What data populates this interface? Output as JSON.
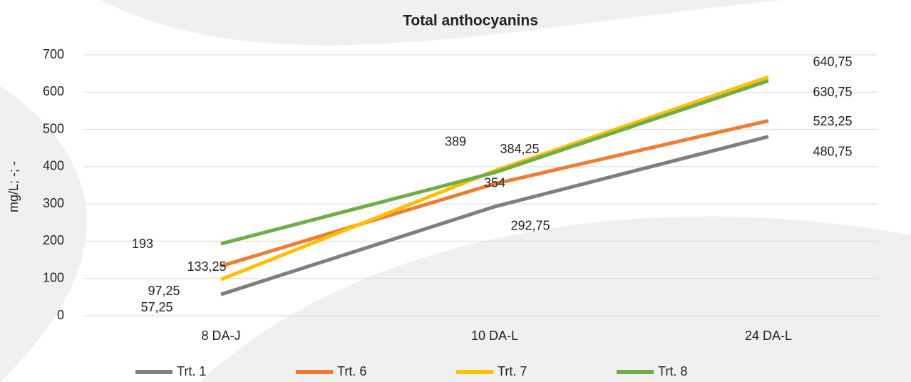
{
  "chart_data": {
    "type": "line",
    "title": "Total anthocyanins",
    "y_label": "mg/L; -; -",
    "categories": [
      "8 DA-J",
      "10 DA-L",
      "24 DA-L"
    ],
    "series": [
      {
        "name": "Trt. 1",
        "color": "#7f7f7f",
        "values": [
          57.25,
          292.75,
          480.75
        ],
        "value_labels": [
          "57,25",
          "292,75",
          "480,75"
        ]
      },
      {
        "name": "Trt. 6",
        "color": "#ed7d31",
        "values": [
          133.25,
          354,
          523.25
        ],
        "value_labels": [
          "133,25",
          "354",
          "523,25"
        ]
      },
      {
        "name": "Trt. 7",
        "color": "#ffc000",
        "values": [
          97.25,
          389,
          640.75
        ],
        "value_labels": [
          "97,25",
          "389",
          "640,75"
        ]
      },
      {
        "name": "Trt. 8",
        "color": "#70ad47",
        "values": [
          193,
          384.25,
          630.75
        ],
        "value_labels": [
          "193",
          "384,25",
          "630,75"
        ]
      }
    ],
    "ylim": [
      0,
      700
    ],
    "yticks": [
      0,
      100,
      200,
      300,
      400,
      500,
      600,
      700
    ],
    "grid": true,
    "legend": "bottom"
  }
}
